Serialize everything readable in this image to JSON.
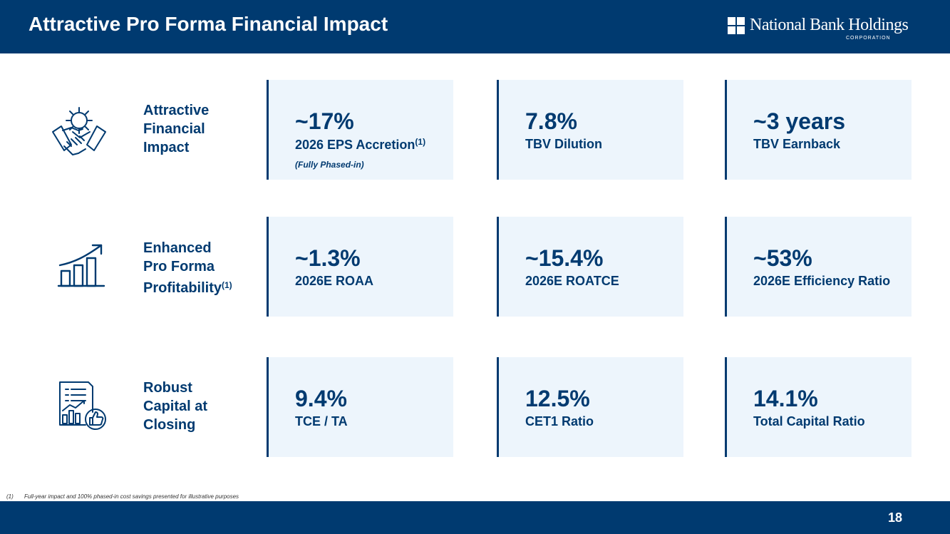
{
  "header": {
    "title": "Attractive Pro Forma Financial Impact",
    "logo_name": "National Bank Holdings",
    "logo_sub": "CORPORATION"
  },
  "rows": [
    {
      "icon": "handshake-gear-icon",
      "label_lines": [
        "Attractive",
        "Financial",
        "Impact"
      ],
      "label_sup": "",
      "cards": [
        {
          "value": "~17%",
          "label": "2026 EPS Accretion",
          "label_sup": "(1)",
          "note": "(Fully Phased-in)"
        },
        {
          "value": "7.8%",
          "label": "TBV Dilution",
          "label_sup": "",
          "note": ""
        },
        {
          "value": "~3 years",
          "label": "TBV Earnback",
          "label_sup": "",
          "note": ""
        }
      ]
    },
    {
      "icon": "growth-chart-icon",
      "label_lines": [
        "Enhanced",
        "Pro Forma",
        "Profitability"
      ],
      "label_sup": "(1)",
      "cards": [
        {
          "value": "~1.3%",
          "label": "2026E ROAA",
          "label_sup": "",
          "note": ""
        },
        {
          "value": "~15.4%",
          "label": "2026E ROATCE",
          "label_sup": "",
          "note": ""
        },
        {
          "value": "~53%",
          "label": "2026E Efficiency Ratio",
          "label_sup": "",
          "note": ""
        }
      ]
    },
    {
      "icon": "report-thumbs-up-icon",
      "label_lines": [
        "Robust",
        "Capital at",
        "Closing"
      ],
      "label_sup": "",
      "cards": [
        {
          "value": "9.4%",
          "label": "TCE / TA",
          "label_sup": "",
          "note": ""
        },
        {
          "value": "12.5%",
          "label": "CET1 Ratio",
          "label_sup": "",
          "note": ""
        },
        {
          "value": "14.1%",
          "label": "Total Capital Ratio",
          "label_sup": "",
          "note": ""
        }
      ]
    }
  ],
  "footnote": {
    "num": "(1)",
    "text": "Full-year impact and 100% phased-in cost savings presented for illustrative purposes"
  },
  "footer": {
    "page_number": "18"
  },
  "colors": {
    "brand": "#003a70",
    "card_bg": "#edf5fc"
  }
}
